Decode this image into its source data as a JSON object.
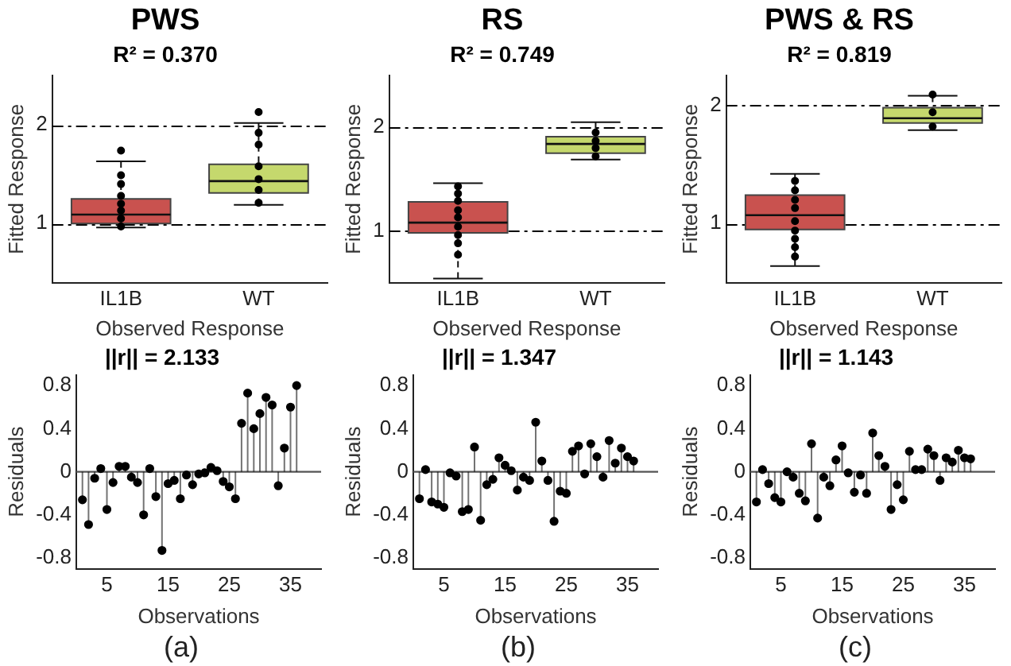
{
  "chart_data": [
    {
      "type": "box",
      "title": "PWS",
      "subtitle": "R² = 0.370",
      "xlabel": "Observed Response",
      "ylabel": "Fitted Response",
      "categories": [
        "IL1B",
        "WT"
      ],
      "ylim": [
        0.4,
        2.5
      ],
      "yticks": [
        1,
        2
      ],
      "marker": "circle",
      "ref_lines": [
        {
          "axis": "y",
          "value": 1,
          "color": "#000000",
          "line_style": "dashed"
        },
        {
          "axis": "y",
          "value": 2,
          "color": "#000000",
          "line_style": "dashed"
        }
      ],
      "series": [
        {
          "type": "box",
          "colors": [
            "#c9524f",
            "#c5d86d"
          ],
          "boxes": [
            {
              "low": 0.96,
              "q1": 1.0,
              "median": 1.09,
              "q3": 1.25,
              "high": 1.63
            },
            {
              "low": 1.19,
              "q1": 1.31,
              "median": 1.43,
              "q3": 1.6,
              "high": 2.02
            }
          ]
        },
        {
          "type": "scatter",
          "color": "#000000",
          "x": [
            "IL1B",
            "IL1B",
            "IL1B",
            "IL1B",
            "IL1B",
            "IL1B",
            "IL1B",
            "IL1B",
            "WT",
            "WT",
            "WT",
            "WT",
            "WT",
            "WT",
            "WT"
          ],
          "values": [
            1.74,
            1.49,
            1.4,
            1.28,
            1.2,
            1.13,
            1.05,
            0.97,
            2.13,
            1.92,
            1.8,
            1.58,
            1.45,
            1.34,
            1.21
          ]
        }
      ]
    },
    {
      "type": "box",
      "title": "RS",
      "subtitle": "R² = 0.749",
      "xlabel": "Observed Response",
      "ylabel": "Fitted Response",
      "categories": [
        "IL1B",
        "WT"
      ],
      "ylim": [
        0.5,
        2.5
      ],
      "yticks": [
        1,
        2
      ],
      "marker": "circle",
      "ref_lines": [
        {
          "axis": "y",
          "value": 1,
          "color": "#000000",
          "line_style": "dashed"
        },
        {
          "axis": "y",
          "value": 2,
          "color": "#000000",
          "line_style": "dashed"
        }
      ],
      "series": [
        {
          "type": "box",
          "colors": [
            "#c9524f",
            "#c5d86d"
          ],
          "boxes": [
            {
              "low": 0.54,
              "q1": 0.98,
              "median": 1.08,
              "q3": 1.28,
              "high": 1.46
            },
            {
              "low": 1.69,
              "q1": 1.75,
              "median": 1.84,
              "q3": 1.91,
              "high": 2.05
            }
          ]
        },
        {
          "type": "scatter",
          "color": "#000000",
          "x": [
            "IL1B",
            "IL1B",
            "IL1B",
            "IL1B",
            "IL1B",
            "IL1B",
            "IL1B",
            "IL1B",
            "IL1B",
            "WT",
            "WT",
            "WT",
            "WT"
          ],
          "values": [
            1.43,
            1.36,
            1.29,
            1.2,
            1.13,
            1.04,
            0.96,
            0.88,
            0.77,
            1.95,
            1.87,
            1.8,
            1.72
          ]
        }
      ]
    },
    {
      "type": "box",
      "title": "PWS & RS",
      "subtitle": "R² = 0.819",
      "xlabel": "Observed Response",
      "ylabel": "Fitted Response",
      "categories": [
        "IL1B",
        "WT"
      ],
      "ylim": [
        0.5,
        2.25
      ],
      "yticks": [
        1,
        2
      ],
      "marker": "circle",
      "ref_lines": [
        {
          "axis": "y",
          "value": 1,
          "color": "#000000",
          "line_style": "dashed"
        },
        {
          "axis": "y",
          "value": 2,
          "color": "#000000",
          "line_style": "dashed"
        }
      ],
      "series": [
        {
          "type": "box",
          "colors": [
            "#c9524f",
            "#c5d86d"
          ],
          "boxes": [
            {
              "low": 0.64,
              "q1": 0.95,
              "median": 1.07,
              "q3": 1.24,
              "high": 1.42
            },
            {
              "low": 1.79,
              "q1": 1.85,
              "median": 1.89,
              "q3": 1.98,
              "high": 2.08
            }
          ]
        },
        {
          "type": "scatter",
          "color": "#000000",
          "x": [
            "IL1B",
            "IL1B",
            "IL1B",
            "IL1B",
            "IL1B",
            "IL1B",
            "IL1B",
            "IL1B",
            "IL1B",
            "WT",
            "WT",
            "WT"
          ],
          "values": [
            1.36,
            1.28,
            1.2,
            1.13,
            1.02,
            0.94,
            0.87,
            0.8,
            0.72,
            2.09,
            1.94,
            1.82
          ]
        }
      ]
    },
    {
      "type": "lollipop",
      "title": "||r|| = 2.133",
      "xlabel": "Observations",
      "ylabel": "Residuals",
      "annotations": [
        "(a)"
      ],
      "xlim": [
        0,
        40
      ],
      "xticks": [
        5,
        15,
        25,
        35
      ],
      "ylim": [
        -0.9,
        0.9
      ],
      "yticks": [
        -0.8,
        -0.4,
        0,
        0.4,
        0.8
      ],
      "marker": "circle",
      "color": "#000000",
      "x": [
        1,
        2,
        3,
        4,
        5,
        6,
        7,
        8,
        9,
        10,
        11,
        12,
        13,
        14,
        15,
        16,
        17,
        18,
        19,
        20,
        21,
        22,
        23,
        24,
        25,
        26,
        27,
        28,
        29,
        30,
        31,
        32,
        33,
        34,
        35,
        36
      ],
      "values": [
        -0.26,
        -0.49,
        -0.06,
        0.03,
        -0.35,
        -0.1,
        0.05,
        0.05,
        -0.05,
        -0.1,
        -0.4,
        0.03,
        -0.23,
        -0.73,
        -0.11,
        -0.08,
        -0.25,
        -0.03,
        -0.12,
        -0.02,
        -0.01,
        0.04,
        0.01,
        -0.09,
        -0.14,
        -0.25,
        0.45,
        0.73,
        0.4,
        0.54,
        0.69,
        0.62,
        -0.13,
        0.22,
        0.6,
        0.8
      ]
    },
    {
      "type": "lollipop",
      "title": "||r|| = 1.347",
      "xlabel": "Observations",
      "ylabel": "Residuals",
      "annotations": [
        "(b)"
      ],
      "xlim": [
        0,
        40
      ],
      "xticks": [
        5,
        15,
        25,
        35
      ],
      "ylim": [
        -0.9,
        0.9
      ],
      "yticks": [
        -0.8,
        -0.4,
        0,
        0.4,
        0.8
      ],
      "marker": "circle",
      "color": "#000000",
      "x": [
        1,
        2,
        3,
        4,
        5,
        6,
        7,
        8,
        9,
        10,
        11,
        12,
        13,
        14,
        15,
        16,
        17,
        18,
        19,
        20,
        21,
        22,
        23,
        24,
        25,
        26,
        27,
        28,
        29,
        30,
        31,
        32,
        33,
        34,
        35,
        36
      ],
      "values": [
        -0.25,
        0.02,
        -0.28,
        -0.3,
        -0.33,
        -0.01,
        -0.04,
        -0.37,
        -0.35,
        0.23,
        -0.45,
        -0.12,
        -0.07,
        0.13,
        0.06,
        0.01,
        -0.17,
        -0.05,
        -0.08,
        0.46,
        0.1,
        -0.08,
        -0.46,
        -0.18,
        -0.2,
        0.19,
        0.24,
        -0.02,
        0.26,
        0.14,
        -0.05,
        0.29,
        0.08,
        0.22,
        0.14,
        0.1
      ]
    },
    {
      "type": "lollipop",
      "title": "||r|| = 1.143",
      "xlabel": "Observations",
      "ylabel": "Residuals",
      "annotations": [
        "(c)"
      ],
      "xlim": [
        0,
        40
      ],
      "xticks": [
        5,
        15,
        25,
        35
      ],
      "ylim": [
        -0.9,
        0.9
      ],
      "yticks": [
        -0.8,
        -0.4,
        0,
        0.4,
        0.8
      ],
      "marker": "circle",
      "color": "#000000",
      "x": [
        1,
        2,
        3,
        4,
        5,
        6,
        7,
        8,
        9,
        10,
        11,
        12,
        13,
        14,
        15,
        16,
        17,
        18,
        19,
        20,
        21,
        22,
        23,
        24,
        25,
        26,
        27,
        28,
        29,
        30,
        31,
        32,
        33,
        34,
        35,
        36
      ],
      "values": [
        -0.28,
        0.02,
        -0.11,
        -0.24,
        -0.28,
        0.0,
        -0.05,
        -0.2,
        -0.27,
        0.26,
        -0.43,
        -0.05,
        -0.13,
        0.11,
        0.24,
        -0.01,
        -0.19,
        -0.03,
        -0.2,
        0.36,
        0.15,
        0.05,
        -0.35,
        -0.12,
        -0.26,
        0.19,
        0.02,
        0.02,
        0.21,
        0.15,
        -0.08,
        0.13,
        0.09,
        0.2,
        0.13,
        0.12
      ]
    }
  ]
}
